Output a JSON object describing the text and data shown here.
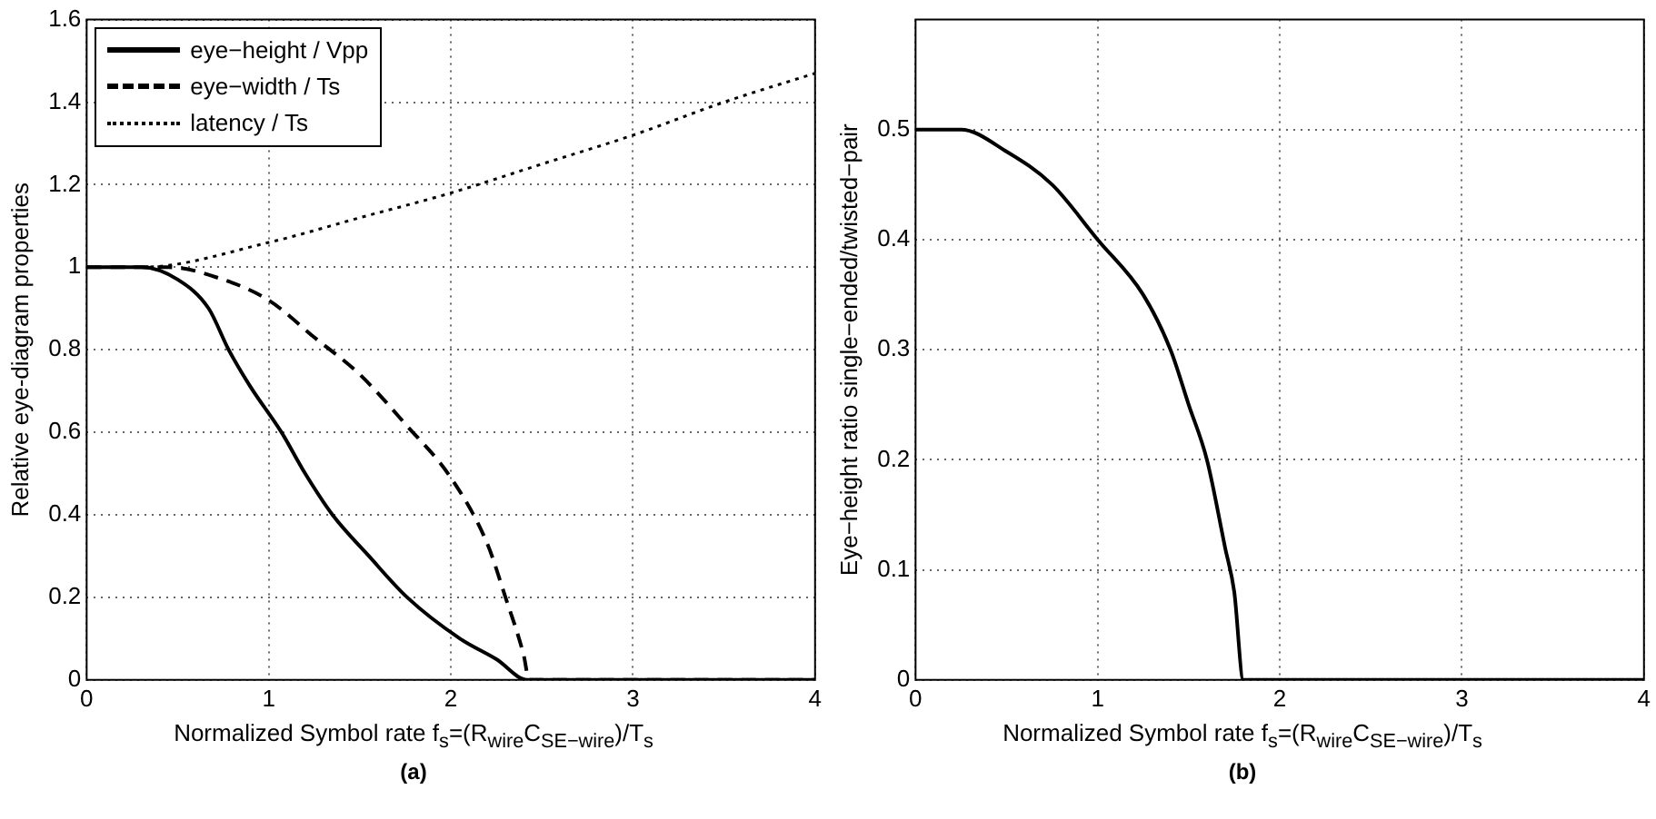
{
  "chart_data": [
    {
      "type": "line",
      "xlabel": "Normalized Symbol rate f$_{s}$=(R$_{wire}$C$_{SE−wire}$)/T$_{s}$",
      "ylabel": "Relative eye-diagram properties",
      "annotations": [
        "(a)"
      ],
      "xlim": [
        0,
        4
      ],
      "xticks": [
        0,
        1,
        2,
        3,
        4
      ],
      "ylim": [
        0,
        1.6
      ],
      "yticks": [
        0,
        0.2,
        0.4,
        0.6,
        0.8,
        1,
        1.2,
        1.4,
        1.6
      ],
      "grid": true,
      "legend": "top left",
      "marker": "none",
      "series": [
        {
          "name": "eye−height / Vpp",
          "color": "#000000",
          "line_style": "solid",
          "x": [
            0,
            0.3,
            0.5,
            0.67,
            0.78,
            0.9,
            1.07,
            1.2,
            1.35,
            1.55,
            1.76,
            2.05,
            2.25,
            2.42,
            4
          ],
          "values": [
            1,
            1,
            0.97,
            0.9,
            0.8,
            0.71,
            0.6,
            0.5,
            0.4,
            0.3,
            0.2,
            0.1,
            0.05,
            0,
            0
          ]
        },
        {
          "name": "eye−width / Ts",
          "color": "#000000",
          "line_style": "dashed",
          "x": [
            0,
            0.45,
            0.75,
            1,
            1.25,
            1.5,
            1.75,
            2,
            2.2,
            2.3,
            2.4,
            2.43,
            4
          ],
          "values": [
            1,
            1,
            0.97,
            0.92,
            0.83,
            0.74,
            0.62,
            0.49,
            0.33,
            0.2,
            0.06,
            0,
            0
          ]
        },
        {
          "name": "latency / Ts",
          "color": "#000000",
          "line_style": "dotted",
          "x": [
            0,
            0.3,
            1,
            1.5,
            2,
            2.5,
            3,
            3.5,
            4
          ],
          "values": [
            1,
            1,
            1.06,
            1.12,
            1.18,
            1.25,
            1.32,
            1.4,
            1.47
          ]
        }
      ]
    },
    {
      "type": "line",
      "xlabel": "Normalized Symbol rate f$_{s}$=(R$_{wire}$C$_{SE−wire}$)/T$_{s}$",
      "ylabel": "Eye−height ratio single−ended/twisted−pair",
      "annotations": [
        "(b)"
      ],
      "xlim": [
        0,
        4
      ],
      "xticks": [
        0,
        1,
        2,
        3,
        4
      ],
      "ylim": [
        0,
        0.6
      ],
      "yticks": [
        0,
        0.1,
        0.2,
        0.3,
        0.4,
        0.5
      ],
      "grid": true,
      "marker": "none",
      "series": [
        {
          "color": "#000000",
          "line_style": "solid",
          "x": [
            0,
            0.25,
            0.5,
            0.75,
            1,
            1.25,
            1.4,
            1.5,
            1.6,
            1.7,
            1.75,
            1.8,
            4
          ],
          "values": [
            0.5,
            0.5,
            0.48,
            0.45,
            0.4,
            0.35,
            0.3,
            0.25,
            0.2,
            0.12,
            0.08,
            0,
            0
          ]
        }
      ]
    }
  ]
}
